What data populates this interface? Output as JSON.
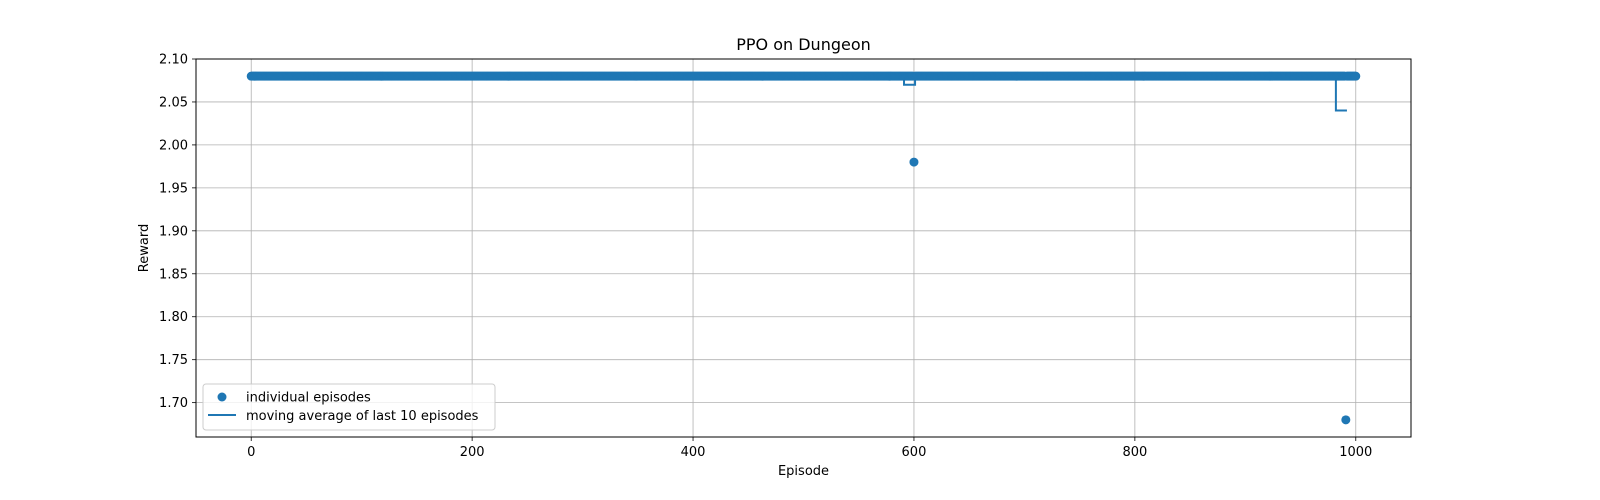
{
  "chart_data": {
    "type": "scatter",
    "title": "PPO on Dungeon",
    "xlabel": "Episode",
    "ylabel": "Reward",
    "xlim": [
      -50,
      1050
    ],
    "ylim": [
      1.66,
      2.1
    ],
    "xticks": [
      0,
      200,
      400,
      600,
      800,
      1000
    ],
    "yticks": [
      1.7,
      1.75,
      1.8,
      1.85,
      1.9,
      1.95,
      2.0,
      2.05,
      2.1
    ],
    "xtick_labels": [
      "0",
      "200",
      "400",
      "600",
      "800",
      "1000"
    ],
    "ytick_labels": [
      "1.70",
      "1.75",
      "1.80",
      "1.85",
      "1.90",
      "1.95",
      "2.00",
      "2.05",
      "2.10"
    ],
    "grid": true,
    "legend_position": "lower-left",
    "series": [
      {
        "name": "individual episodes",
        "kind": "scatter",
        "color": "#1f77b4",
        "baseline_value": 2.08,
        "baseline_x_range": [
          0,
          1000
        ],
        "outliers": [
          {
            "x": 600,
            "y": 1.98
          },
          {
            "x": 991,
            "y": 1.68
          }
        ]
      },
      {
        "name": "moving average of last 10 episodes",
        "kind": "line",
        "color": "#1f77b4",
        "points": [
          {
            "x": 0,
            "y": 2.08
          },
          {
            "x": 591,
            "y": 2.08
          },
          {
            "x": 591,
            "y": 2.07
          },
          {
            "x": 601,
            "y": 2.07
          },
          {
            "x": 601,
            "y": 2.08
          },
          {
            "x": 982,
            "y": 2.08
          },
          {
            "x": 982,
            "y": 2.04
          },
          {
            "x": 992,
            "y": 2.04
          }
        ]
      }
    ]
  }
}
